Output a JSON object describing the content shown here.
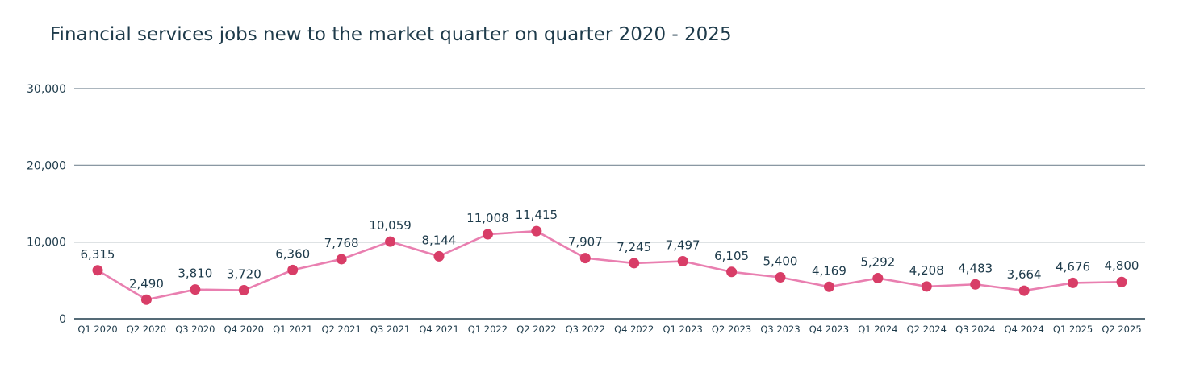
{
  "chart_data": {
    "type": "line",
    "title": "Financial services jobs new to the market quarter on quarter 2020 - 2025",
    "xlabel": "",
    "ylabel": "",
    "ylim": [
      0,
      30000
    ],
    "yticks": [
      0,
      10000,
      20000,
      30000
    ],
    "ytick_labels": [
      "0",
      "10,000",
      "20,000",
      "30,000"
    ],
    "grid": true,
    "legend": "none",
    "colors": {
      "line": "#e97fb0",
      "marker": "#d83d67",
      "grid": "#7a8a96",
      "axis": "#1d3a4a",
      "text": "#1d3a4a"
    },
    "categories": [
      "Q1 2020",
      "Q2 2020",
      "Q3 2020",
      "Q4 2020",
      "Q1 2021",
      "Q2 2021",
      "Q3 2021",
      "Q4 2021",
      "Q1 2022",
      "Q2 2022",
      "Q3 2022",
      "Q4 2022",
      "Q1 2023",
      "Q2 2023",
      "Q3 2023",
      "Q4 2023",
      "Q1 2024",
      "Q2 2024",
      "Q3 2024",
      "Q4 2024",
      "Q1 2025",
      "Q2 2025"
    ],
    "values": [
      6315,
      2490,
      3810,
      3720,
      6360,
      7768,
      10059,
      8144,
      11008,
      11415,
      7907,
      7245,
      7497,
      6105,
      5400,
      4169,
      5292,
      4208,
      4483,
      3664,
      4676,
      4800
    ],
    "value_labels": [
      "6,315",
      "2,490",
      "3,810",
      "3,720",
      "6,360",
      "7,768",
      "10,059",
      "8,144",
      "11,008",
      "11,415",
      "7,907",
      "7,245",
      "7,497",
      "6,105",
      "5,400",
      "4,169",
      "5,292",
      "4,208",
      "4,483",
      "3,664",
      "4,676",
      "4,800"
    ]
  }
}
